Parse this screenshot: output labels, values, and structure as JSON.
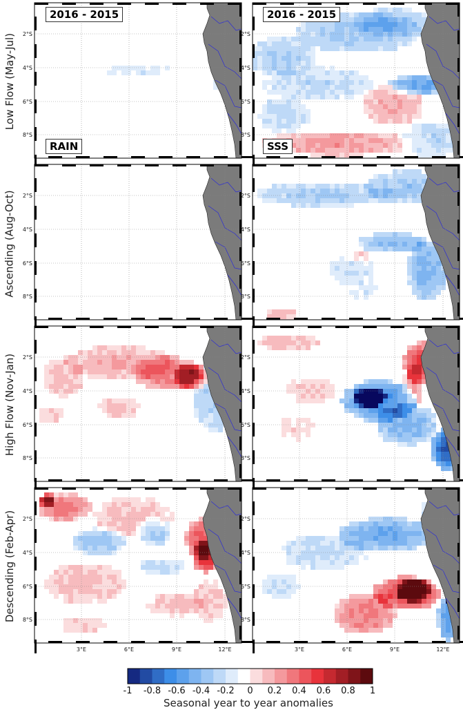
{
  "panels": [
    {
      "id": "r0c0",
      "tag": "2016 - 2015",
      "bottom_tag": "RAIN"
    },
    {
      "id": "r0c1",
      "tag": "2016 - 2015",
      "bottom_tag": "SSS"
    }
  ],
  "row_labels": [
    "Low Flow (May-Jul)",
    "Ascending (Aug-Oct)",
    "High Flow (Nov-Jan)",
    "Descending (Feb-Apr)"
  ],
  "lat_ticks": [
    "2°S",
    "4°S",
    "6°S",
    "8°S"
  ],
  "lon_ticks": [
    "3°E",
    "6°E",
    "9°E",
    "12°E"
  ],
  "colorbar": {
    "ticks": [
      "-1",
      "-0.8",
      "-0.6",
      "-0.4",
      "-0.2",
      "0",
      "0.2",
      "0.4",
      "0.6",
      "0.8",
      "1"
    ],
    "title": "Seasonal year to year anomalies",
    "range": [
      -1,
      1
    ],
    "colors": {
      "neg_max": "#08085e",
      "neg_mid": "#3d8ee8",
      "zero": "#ffffff",
      "pos_mid": "#e8333b",
      "pos_max": "#5c0a0e"
    }
  },
  "map_colors": {
    "land": "#7b7b7b",
    "river": "#2a2ad8",
    "grid": "#888888"
  }
}
